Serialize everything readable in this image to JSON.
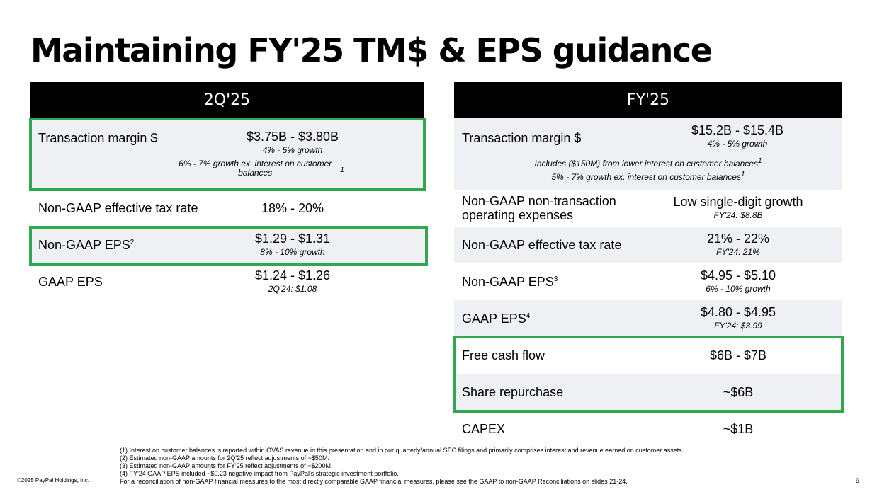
{
  "slide": {
    "title": "Maintaining FY'25 TM$ & EPS guidance",
    "copyright": "©2025 PayPal Holdings, Inc.",
    "page_number": "9"
  },
  "left_panel": {
    "header": "2Q'25",
    "rows": [
      {
        "label": "Transaction margin $",
        "value": "$3.75B - $3.80B",
        "sub": "4% - 5% growth",
        "note": "6% - 7% growth ex. interest on customer balances",
        "note_sup": "1"
      },
      {
        "label": "Non-GAAP effective tax rate",
        "value": "18% - 20%"
      },
      {
        "label": "Non-GAAP EPS",
        "label_sup": "2",
        "value": "$1.29 - $1.31",
        "sub": "8% - 10% growth"
      },
      {
        "label": "GAAP EPS",
        "value": "$1.24 - $1.26",
        "sub": "2Q'24: $1.08"
      }
    ]
  },
  "right_panel": {
    "header": "FY'25",
    "rows": [
      {
        "label": "Transaction margin $",
        "value": "$15.2B - $15.4B",
        "sub": "4% - 5% growth",
        "note1": "Includes ($150M) from lower interest on customer balances",
        "note1_sup": "1",
        "note2": "5% - 7% growth ex. interest on customer balances",
        "note2_sup": "1"
      },
      {
        "label_line1": "Non-GAAP non-transaction",
        "label_line2": "operating expenses",
        "value": "Low single-digit growth",
        "sub": "FY'24: $8.8B"
      },
      {
        "label": "Non-GAAP effective tax rate",
        "value": "21% - 22%",
        "sub": "FY'24: 21%"
      },
      {
        "label": "Non-GAAP EPS",
        "label_sup": "3",
        "value": "$4.95 - $5.10",
        "sub": "6% - 10% growth"
      },
      {
        "label": "GAAP EPS",
        "label_sup": "4",
        "value": "$4.80 - $4.95",
        "sub": "FY'24: $3.99"
      },
      {
        "label": "Free cash flow",
        "value": "$6B - $7B"
      },
      {
        "label": "Share repurchase",
        "value": "~$6B"
      },
      {
        "label": "CAPEX",
        "value": "~$1B"
      }
    ]
  },
  "footnotes": [
    "(1) Interest on customer balances is reported within OVAS revenue in this presentation and in our quarterly/annual SEC filings and primarily comprises interest and revenue earned on customer assets.",
    "(2) Estimated non-GAAP amounts for 2Q'25 reflect adjustments of ~$50M.",
    "(3) Estimated non-GAAP amounts for FY'25 reflect adjustments of ~$200M.",
    "(4) FY'24 GAAP EPS included ~$0.23 negative impact from PayPal's strategic investment portfolio.",
    "For a reconciliation of non-GAAP financial measures to the most directly comparable GAAP financial measures, please see the GAAP to non-GAAP Reconciliations on slides 21-24."
  ],
  "colors": {
    "highlight_border": "#2fa84f",
    "row_shade": "#eef0f3",
    "header_bg": "#000000"
  }
}
